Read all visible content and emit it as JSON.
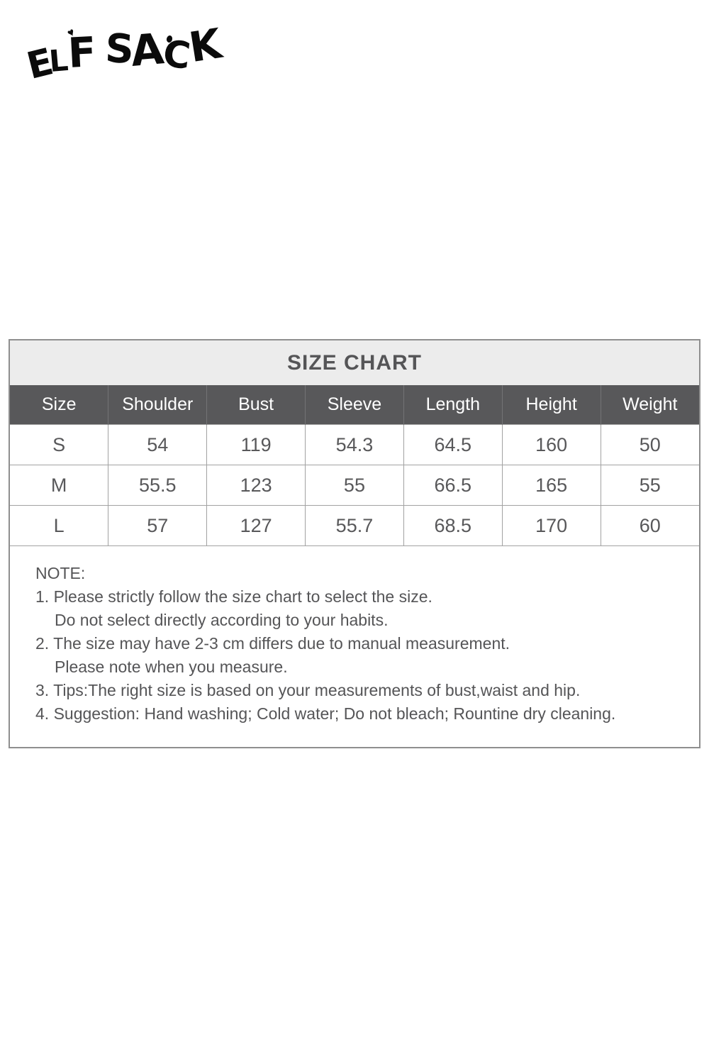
{
  "brand": {
    "name": "ELF SACK",
    "letters": {
      "e": "E",
      "l": "L",
      "f": "F",
      "s": "S",
      "a": "A",
      "c": "C",
      "k": "K"
    },
    "heart_mark": "♥"
  },
  "size_chart": {
    "title": "SIZE CHART",
    "columns": [
      "Size",
      "Shoulder",
      "Bust",
      "Sleeve",
      "Length",
      "Height",
      "Weight"
    ],
    "rows": [
      [
        "S",
        "54",
        "119",
        "54.3",
        "64.5",
        "160",
        "50"
      ],
      [
        "M",
        "55.5",
        "123",
        "55",
        "66.5",
        "165",
        "55"
      ],
      [
        "L",
        "57",
        "127",
        "55.7",
        "68.5",
        "170",
        "60"
      ]
    ]
  },
  "notes": {
    "heading": "NOTE:",
    "line1": "1. Please strictly follow the size chart to select the size.",
    "line1b": "Do not select directly according to your habits.",
    "line2": "2. The size may have 2-3 cm differs due to manual measurement.",
    "line2b": "Please note when you measure.",
    "line3": "3. Tips:The right size is based on your measurements of bust,waist and hip.",
    "line4": "4. Suggestion: Hand washing; Cold water; Do not bleach; Rountine dry cleaning."
  },
  "colors": {
    "logo_text": "#0b0b0b",
    "title_band_bg": "#ececec",
    "header_bg": "#58585a",
    "header_text": "#ffffff",
    "body_text": "#555557",
    "table_border": "#a2a2a2",
    "outer_border": "#8f8f8f"
  }
}
